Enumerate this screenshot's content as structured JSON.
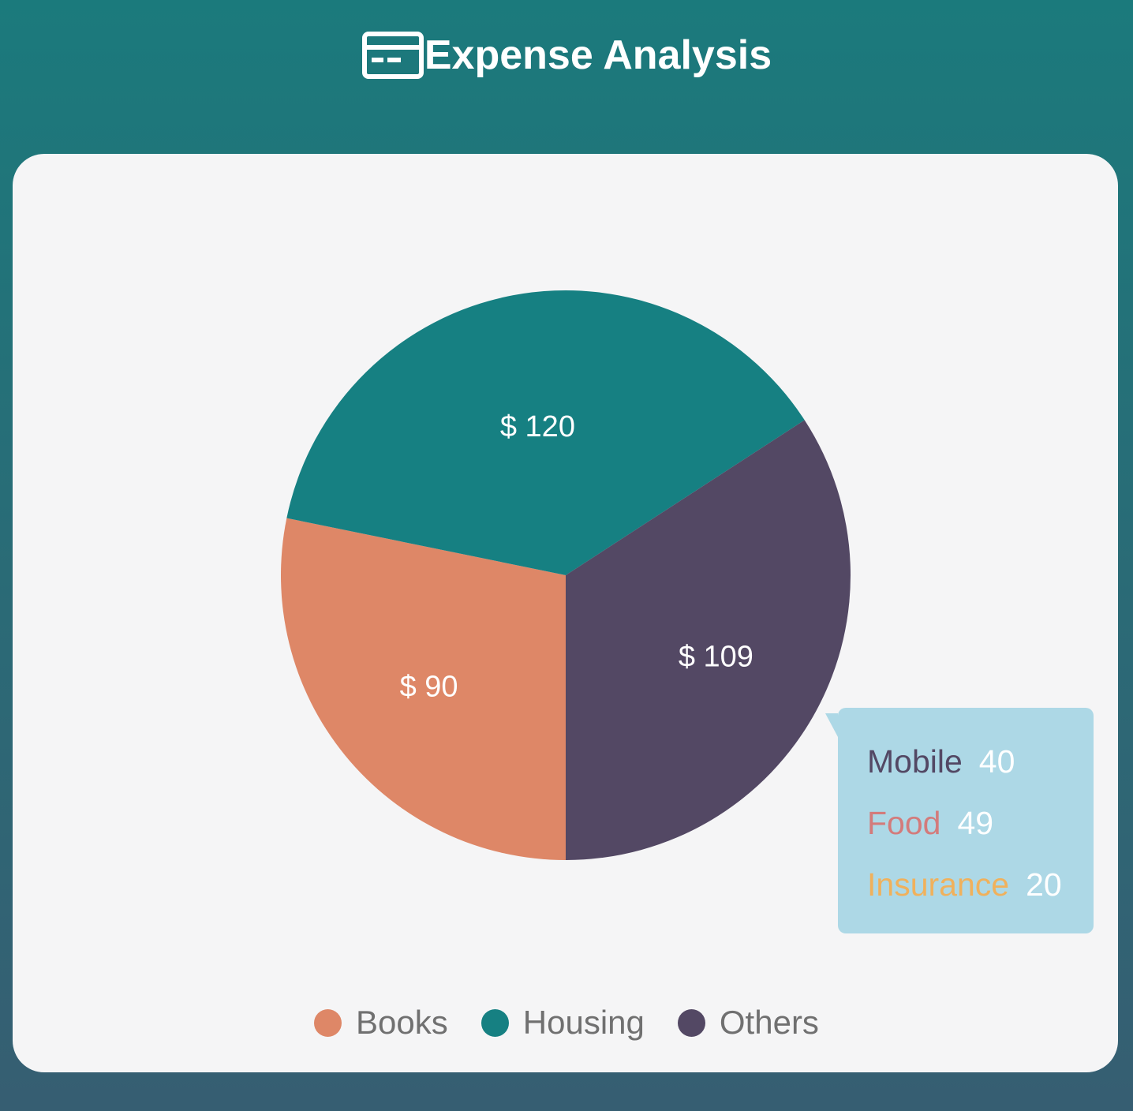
{
  "header": {
    "title": "Expense Analysis",
    "icon": "credit-card-icon"
  },
  "colors": {
    "background_top": "#1b7a7c",
    "background_bottom": "#365e72",
    "card": "#f5f5f6",
    "tooltip": "#add8e6"
  },
  "chart_data": {
    "type": "pie",
    "title": "Expense Analysis",
    "slices": [
      {
        "name": "Books",
        "value": 90,
        "label": "$ 90",
        "color": "#de8767"
      },
      {
        "name": "Housing",
        "value": 120,
        "label": "$ 120",
        "color": "#168082"
      },
      {
        "name": "Others",
        "value": 109,
        "label": "$ 109",
        "color": "#534864"
      }
    ],
    "legend": {
      "placement": "bottom",
      "entries": [
        "Books",
        "Housing",
        "Others"
      ]
    },
    "tooltip": {
      "slice": "Others",
      "rows": [
        {
          "name": "Mobile",
          "value": "40",
          "color": "#534864"
        },
        {
          "name": "Food",
          "value": "49",
          "color": "#d37b7b"
        },
        {
          "name": "Insurance",
          "value": "20",
          "color": "#f0b15c"
        }
      ]
    }
  }
}
